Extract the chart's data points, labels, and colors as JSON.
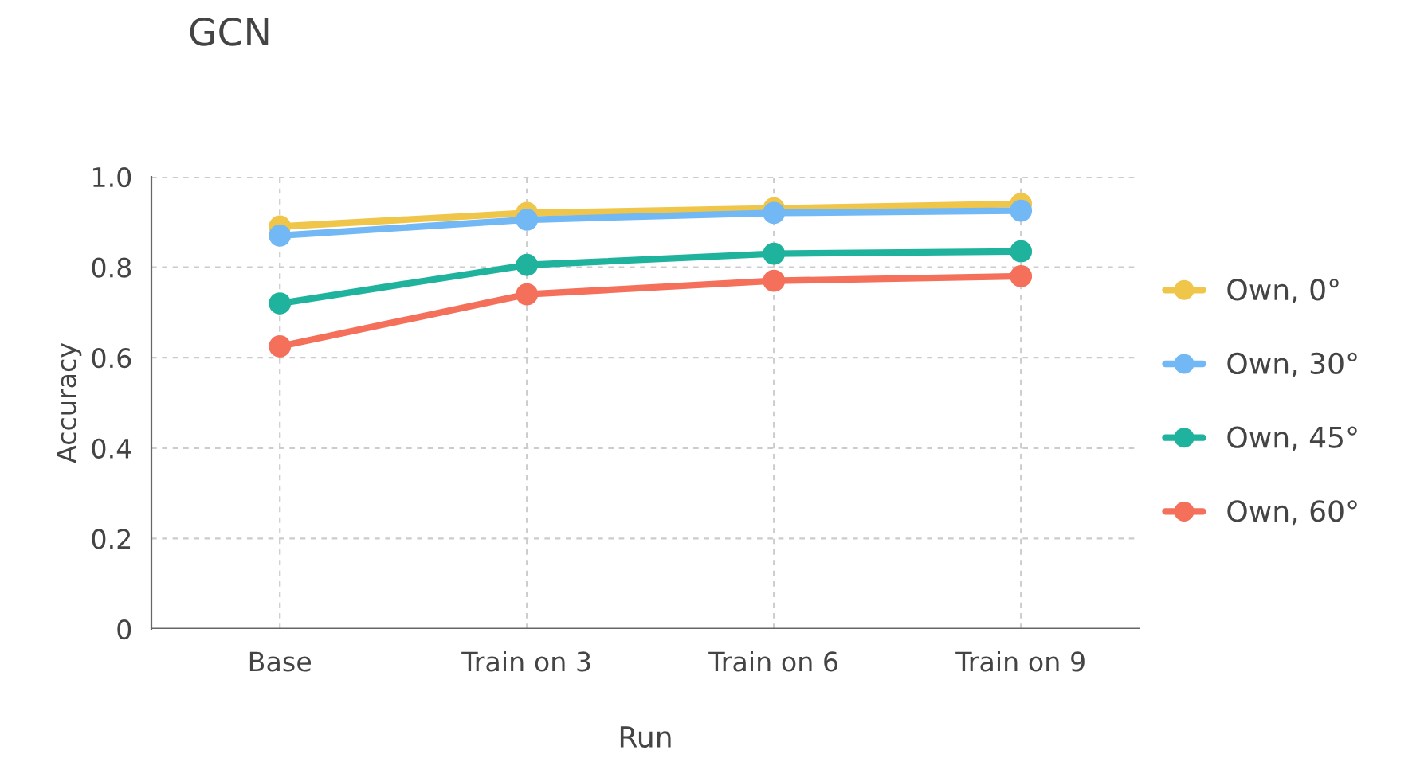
{
  "chart_data": {
    "type": "line",
    "title": "GCN",
    "xlabel": "Run",
    "ylabel": "Accuracy",
    "categories": [
      "Base",
      "Train on 3",
      "Train on 6",
      "Train on 9"
    ],
    "series": [
      {
        "name": "Own, 0°",
        "color": "#f0c64a",
        "values": [
          0.89,
          0.92,
          0.93,
          0.94
        ]
      },
      {
        "name": "Own, 30°",
        "color": "#72b8f5",
        "values": [
          0.87,
          0.905,
          0.92,
          0.925
        ]
      },
      {
        "name": "Own, 45°",
        "color": "#1fb39d",
        "values": [
          0.72,
          0.805,
          0.83,
          0.835
        ]
      },
      {
        "name": "Own, 60°",
        "color": "#f4705a",
        "values": [
          0.625,
          0.74,
          0.77,
          0.78
        ]
      }
    ],
    "ylim": [
      0,
      1.0
    ],
    "yticks": [
      0,
      0.2,
      0.4,
      0.6,
      0.8,
      {
        "value": 1,
        "label": "1.0"
      }
    ],
    "grid": true,
    "legend": "right",
    "marker": "circle",
    "line_style": "solid"
  }
}
